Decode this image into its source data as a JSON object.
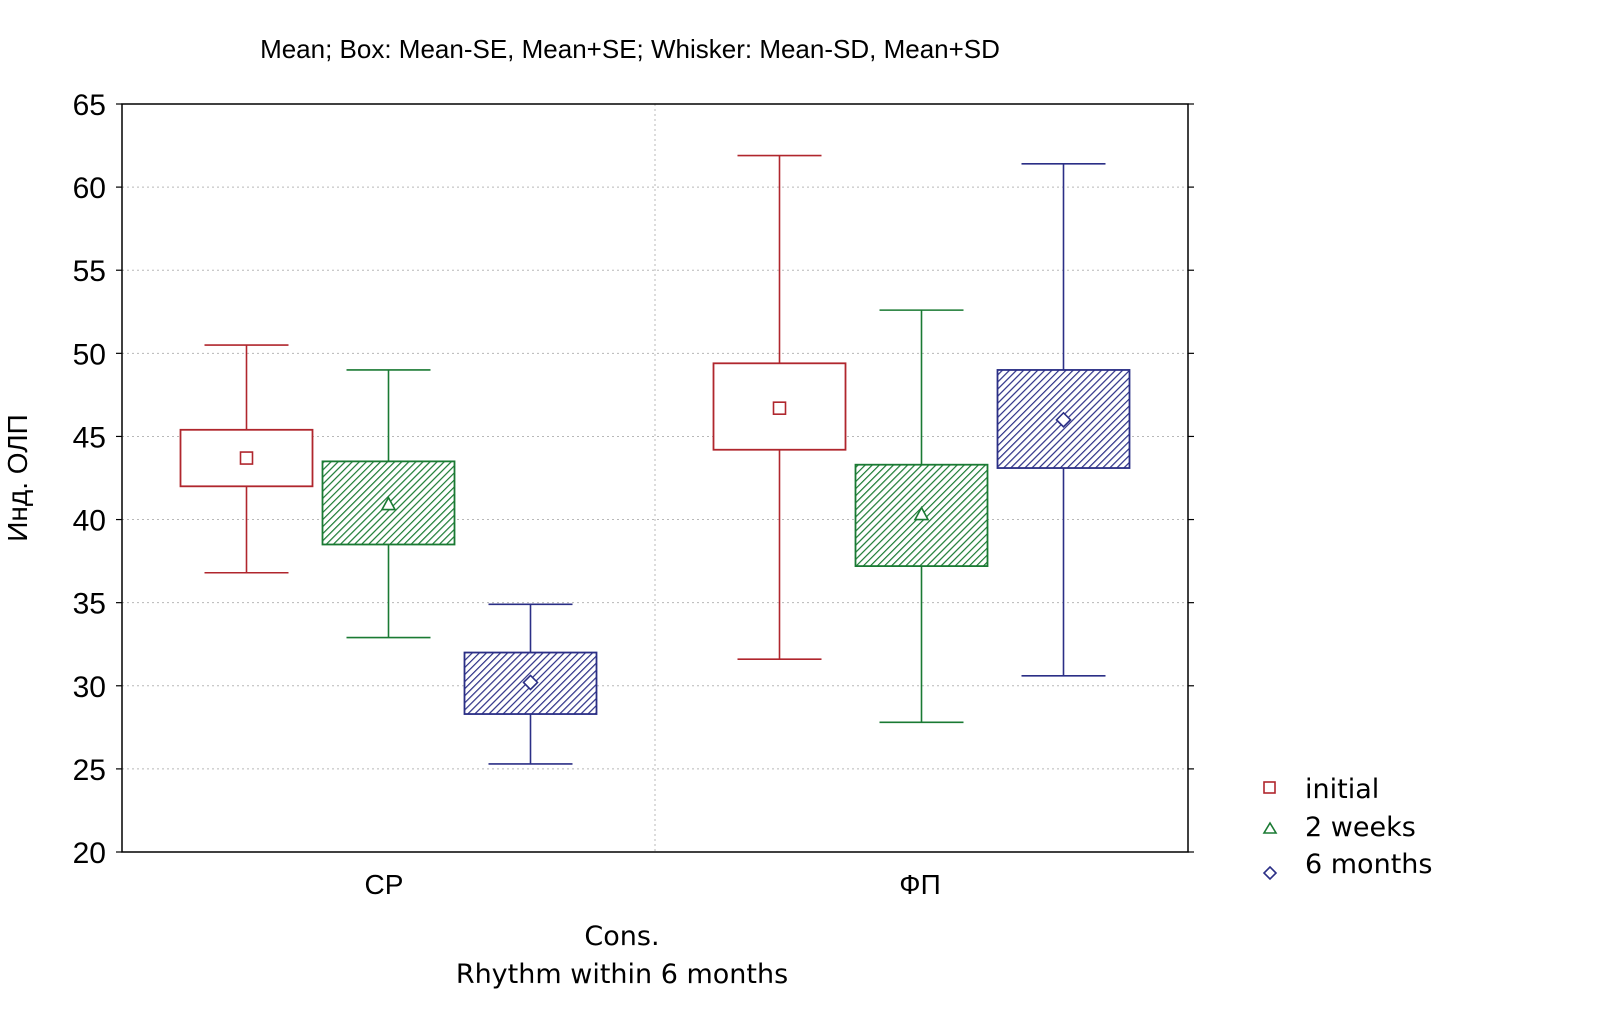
{
  "chart_data": {
    "type": "box",
    "title": "Mean; Box: Mean-SE, Mean+SE; Whisker: Mean-SD, Mean+SD",
    "ylabel": "Инд. ОЛП",
    "xlabel_lines": [
      "Cons.",
      "Rhythm within 6 months"
    ],
    "ylim": [
      20,
      65
    ],
    "yticks": [
      20,
      25,
      30,
      35,
      40,
      45,
      50,
      55,
      60,
      65
    ],
    "categories": [
      "СР",
      "ФП"
    ],
    "grid": true,
    "legend_position": "bottom-right",
    "series": [
      {
        "name": "initial",
        "marker": "square",
        "color": "#b0262d",
        "fill": "none",
        "stats": [
          {
            "mean": 43.7,
            "se_low": 42.0,
            "se_high": 45.4,
            "sd_low": 36.8,
            "sd_high": 50.5
          },
          {
            "mean": 46.7,
            "se_low": 44.2,
            "se_high": 49.4,
            "sd_low": 31.6,
            "sd_high": 61.9
          }
        ]
      },
      {
        "name": "2 weeks",
        "marker": "triangle",
        "color": "#1a7a33",
        "fill": "hatch",
        "stats": [
          {
            "mean": 40.9,
            "se_low": 38.5,
            "se_high": 43.5,
            "sd_low": 32.9,
            "sd_high": 49.0
          },
          {
            "mean": 40.3,
            "se_low": 37.2,
            "se_high": 43.3,
            "sd_low": 27.8,
            "sd_high": 52.6
          }
        ]
      },
      {
        "name": "6 months",
        "marker": "diamond",
        "color": "#2b2f86",
        "fill": "hatch",
        "stats": [
          {
            "mean": 30.2,
            "se_low": 28.3,
            "se_high": 32.0,
            "sd_low": 25.3,
            "sd_high": 34.9
          },
          {
            "mean": 46.0,
            "se_low": 43.1,
            "se_high": 49.0,
            "sd_low": 30.6,
            "sd_high": 61.4
          }
        ]
      }
    ]
  }
}
